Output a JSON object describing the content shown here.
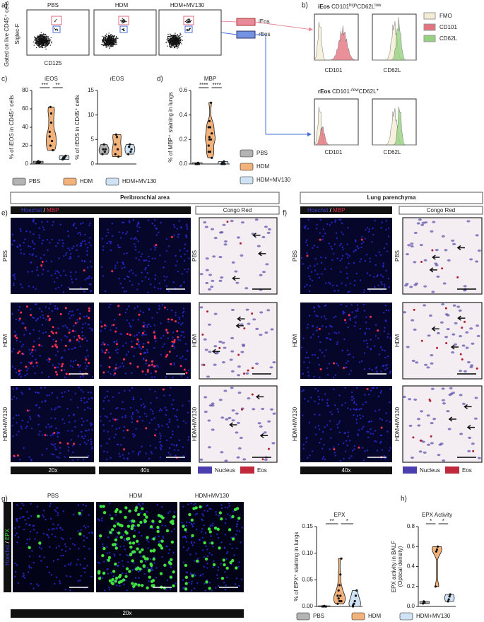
{
  "figure": {
    "panel_labels": [
      "a)",
      "b)",
      "c)",
      "d)",
      "e)",
      "f)",
      "g)",
      "h)"
    ],
    "flow": {
      "groups": [
        "PBS",
        "HDM",
        "HDM+MV130"
      ],
      "y_label_outer": "Gated on live CD45⁺ cells",
      "y_label": "Siglec-F",
      "x_label": "CD125",
      "gates": [
        "iEos",
        "rEos"
      ]
    },
    "histograms": {
      "ieos_title": [
        "iEos",
        "CD101",
        "high",
        "CD62L",
        "low"
      ],
      "reos_title": [
        "rEos",
        "CD101",
        "-/low",
        "CD62L",
        "+"
      ],
      "axis_labels": [
        "CD101",
        "CD62L"
      ],
      "legend": [
        "FMO",
        "CD101",
        "CD62L"
      ]
    },
    "panel_e": {
      "title": "Peribronchial area",
      "stain": [
        "Hoechst",
        "/",
        "MBP"
      ],
      "congo": "Congo Red",
      "rows": [
        "PBS",
        "HDM",
        "HDM+MV130"
      ],
      "magnifications": [
        "20x",
        "40x"
      ],
      "legend": [
        "Nucleus",
        "Eos"
      ]
    },
    "panel_f": {
      "title": "Lung parenchyma",
      "stain": [
        "Hoechst",
        "/",
        "MBP"
      ],
      "congo": "Congo Red",
      "rows": [
        "PBS",
        "HDM",
        "HDM+MV130"
      ],
      "magnification": "40x",
      "legend": [
        "Nucleus",
        "Eos"
      ]
    },
    "panel_g": {
      "columns": [
        "PBS",
        "HDM",
        "HDM+MV130"
      ],
      "stain": [
        "Hoechst",
        "/",
        "EPX"
      ],
      "magnification": "20x"
    }
  },
  "chart_data": [
    {
      "type": "violin",
      "title": "iEOS",
      "ylabel": "% of iEOS in CD45⁺ cells",
      "ylim": [
        0,
        80
      ],
      "yticks": [
        0,
        20,
        40,
        60,
        80
      ],
      "significance": [
        "***",
        "**"
      ],
      "legend": true,
      "series": [
        {
          "name": "PBS",
          "color": "#b3b3b3",
          "values": [
            1,
            2,
            3,
            1,
            2
          ]
        },
        {
          "name": "HDM",
          "color": "#f2b27a",
          "values": [
            30,
            62,
            55,
            25,
            15,
            35,
            20,
            45
          ]
        },
        {
          "name": "HDM+MV130",
          "color": "#cfe3f5",
          "values": [
            5,
            7,
            6,
            8,
            9
          ]
        }
      ]
    },
    {
      "type": "violin",
      "title": "rEOS",
      "ylabel": "% of rEOS in CD45⁺ cells",
      "ylim": [
        0,
        15
      ],
      "yticks": [
        0,
        5,
        10,
        15
      ],
      "legend": false,
      "series": [
        {
          "name": "PBS",
          "color": "#b3b3b3",
          "values": [
            2,
            3,
            4,
            2.5,
            3
          ]
        },
        {
          "name": "HDM",
          "color": "#f2b27a",
          "values": [
            2,
            6,
            5.5,
            3,
            1.5,
            4
          ]
        },
        {
          "name": "HDM+MV130",
          "color": "#cfe3f5",
          "values": [
            2,
            3.5,
            4,
            2.5,
            3
          ]
        }
      ]
    },
    {
      "type": "violin",
      "title": "MBP",
      "ylabel": "% of MBP⁺ staining in lungs",
      "ylim": [
        0,
        0.6
      ],
      "yticks": [
        {
          "value": 0,
          "label": "0.0"
        },
        0.2,
        0.4,
        0.6
      ],
      "significance": [
        "****",
        "****"
      ],
      "legend": true,
      "series": [
        {
          "name": "PBS",
          "color": "#b3b3b3",
          "values": [
            0,
            0,
            0,
            0.01,
            0
          ]
        },
        {
          "name": "HDM",
          "color": "#f2b27a",
          "values": [
            0.1,
            0.2,
            0.3,
            0.5,
            0.25,
            0.15,
            0.35,
            0.1,
            0.2,
            0.05,
            0.3,
            0.22
          ]
        },
        {
          "name": "HDM+MV130",
          "color": "#cfe3f5",
          "values": [
            0,
            0.01,
            0,
            0.02,
            0
          ]
        }
      ]
    },
    {
      "type": "violin",
      "title": "EPX",
      "ylabel": "% of EPX⁺ staining in lungs",
      "ylim": [
        0,
        0.15
      ],
      "yticks": [
        {
          "value": 0,
          "label": "0.00"
        },
        0.05,
        {
          "value": 0.1,
          "label": "0.10"
        },
        0.15
      ],
      "significance": [
        "**",
        "*"
      ],
      "legend": true,
      "series": [
        {
          "name": "PBS",
          "color": "#b3b3b3",
          "values": [
            0,
            0,
            0.001,
            0,
            0
          ]
        },
        {
          "name": "HDM",
          "color": "#f2b27a",
          "values": [
            0.02,
            0.03,
            0.01,
            0.06,
            0.09,
            0.005,
            0.015,
            0.04,
            0.02,
            0.01
          ]
        },
        {
          "name": "HDM+MV130",
          "color": "#cfe3f5",
          "values": [
            0,
            0.005,
            0.01,
            0.02,
            0.03,
            0.002
          ]
        }
      ]
    },
    {
      "type": "violin",
      "title": "EPX Activity",
      "ylabel": [
        "EPX activity in BALF",
        "(Optical density)"
      ],
      "ylim": [
        0,
        0.8
      ],
      "yticks": [
        {
          "value": 0,
          "label": "0.0"
        },
        0.2,
        0.4,
        0.6,
        0.8
      ],
      "significance": [
        "*",
        "*"
      ],
      "legend": false,
      "series": [
        {
          "name": "PBS",
          "color": "#b3b3b3",
          "values": [
            0.03,
            0.05,
            0.04
          ]
        },
        {
          "name": "HDM",
          "color": "#f2b27a",
          "values": [
            0.2,
            0.55,
            0.57,
            0.6
          ]
        },
        {
          "name": "HDM+MV130",
          "color": "#cfe3f5",
          "values": [
            0.05,
            0.07,
            0.1,
            0.12
          ]
        }
      ]
    }
  ]
}
